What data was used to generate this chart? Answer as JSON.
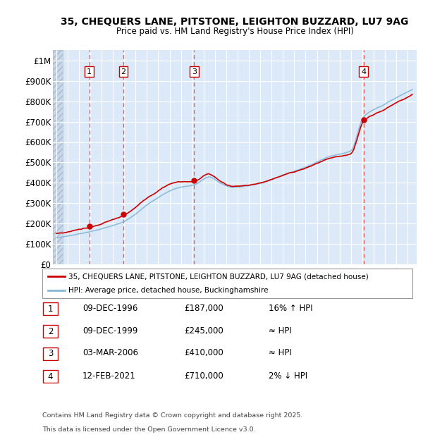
{
  "title_line1": "35, CHEQUERS LANE, PITSTONE, LEIGHTON BUZZARD, LU7 9AG",
  "title_line2": "Price paid vs. HM Land Registry's House Price Index (HPI)",
  "ylabel_ticks": [
    "£0",
    "£100K",
    "£200K",
    "£300K",
    "£400K",
    "£500K",
    "£600K",
    "£700K",
    "£800K",
    "£900K",
    "£1M"
  ],
  "ytick_values": [
    0,
    100000,
    200000,
    300000,
    400000,
    500000,
    600000,
    700000,
    800000,
    900000,
    1000000
  ],
  "ylim": [
    0,
    1050000
  ],
  "xlim_start": 1993.7,
  "xlim_end": 2025.8,
  "bg_color": "#dce9f8",
  "hatch_color": "#c8d8ea",
  "grid_color": "#ffffff",
  "red_line_color": "#cc0000",
  "blue_line_color": "#85b8d8",
  "sale_marker_color": "#cc0000",
  "vline_color": "#e06060",
  "transactions": [
    {
      "num": 1,
      "year": 1996.92,
      "price": 187000,
      "label": "1",
      "date": "09-DEC-1996",
      "pct": "16% ↑ HPI"
    },
    {
      "num": 2,
      "year": 1999.92,
      "price": 245000,
      "label": "2",
      "date": "09-DEC-1999",
      "pct": "≈ HPI"
    },
    {
      "num": 3,
      "year": 2006.17,
      "price": 410000,
      "label": "3",
      "date": "03-MAR-2006",
      "pct": "≈ HPI"
    },
    {
      "num": 4,
      "year": 2021.12,
      "price": 710000,
      "label": "4",
      "date": "12-FEB-2021",
      "pct": "2% ↓ HPI"
    }
  ],
  "legend_line1": "35, CHEQUERS LANE, PITSTONE, LEIGHTON BUZZARD, LU7 9AG (detached house)",
  "legend_line2": "HPI: Average price, detached house, Buckinghamshire",
  "footer_line1": "Contains HM Land Registry data © Crown copyright and database right 2025.",
  "footer_line2": "This data is licensed under the Open Government Licence v3.0.",
  "table_rows": [
    {
      "num": "1",
      "date": "09-DEC-1996",
      "price": "£187,000",
      "pct": "16% ↑ HPI"
    },
    {
      "num": "2",
      "date": "09-DEC-1999",
      "price": "£245,000",
      "pct": "≈ HPI"
    },
    {
      "num": "3",
      "date": "03-MAR-2006",
      "price": "£410,000",
      "pct": "≈ HPI"
    },
    {
      "num": "4",
      "date": "12-FEB-2021",
      "price": "£710,000",
      "pct": "2% ↓ HPI"
    }
  ]
}
